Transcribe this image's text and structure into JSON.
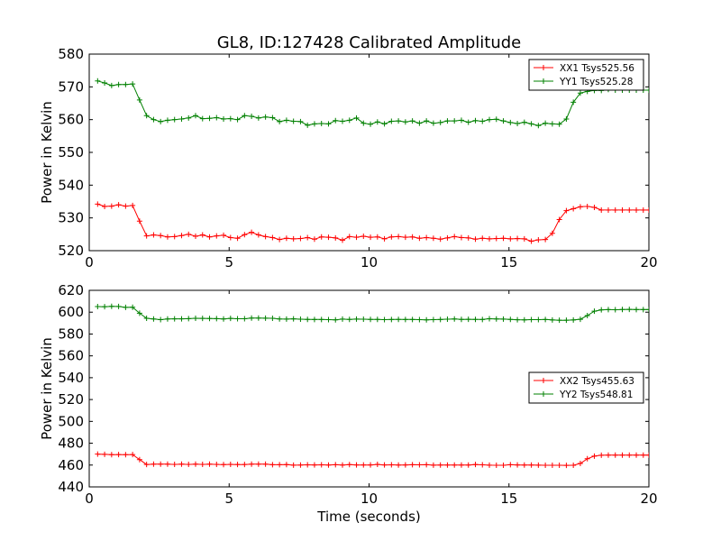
{
  "chart_data": [
    {
      "type": "line",
      "title": "GL8, ID:127428 Calibrated Amplitude",
      "xlabel": "",
      "ylabel": "Power in Kelvin",
      "xlim": [
        0,
        20
      ],
      "ylim": [
        520,
        580
      ],
      "xticks": [
        0,
        5,
        10,
        15,
        20
      ],
      "yticks": [
        520,
        530,
        540,
        550,
        560,
        570,
        580
      ],
      "grid": false,
      "legend": "top-right",
      "x": [
        0.3,
        0.55,
        0.8,
        1.05,
        1.3,
        1.55,
        1.8,
        2.05,
        2.3,
        2.55,
        2.8,
        3.05,
        3.3,
        3.55,
        3.8,
        4.05,
        4.3,
        4.55,
        4.8,
        5.05,
        5.3,
        5.55,
        5.8,
        6.05,
        6.3,
        6.55,
        6.8,
        7.05,
        7.3,
        7.55,
        7.8,
        8.05,
        8.3,
        8.55,
        8.8,
        9.05,
        9.3,
        9.55,
        9.8,
        10.05,
        10.3,
        10.55,
        10.8,
        11.05,
        11.3,
        11.55,
        11.8,
        12.05,
        12.3,
        12.55,
        12.8,
        13.05,
        13.3,
        13.55,
        13.8,
        14.05,
        14.3,
        14.55,
        14.8,
        15.05,
        15.3,
        15.55,
        15.8,
        16.05,
        16.3,
        16.55,
        16.8,
        17.05,
        17.3,
        17.55,
        17.8,
        18.05,
        18.3,
        18.55,
        18.8,
        19.05,
        19.3,
        19.55,
        19.8,
        20.0
      ],
      "series": [
        {
          "name": "XX1 Tsys525.56",
          "color": "#ff0000",
          "values": [
            534.2,
            533.5,
            533.6,
            534.0,
            533.6,
            533.8,
            529.0,
            524.5,
            524.8,
            524.6,
            524.2,
            524.3,
            524.6,
            525.0,
            524.4,
            524.8,
            524.2,
            524.5,
            524.7,
            524.0,
            523.8,
            524.9,
            525.6,
            524.8,
            524.3,
            524.0,
            523.4,
            523.8,
            523.6,
            523.7,
            524.0,
            523.5,
            524.2,
            524.1,
            523.9,
            523.2,
            524.3,
            524.1,
            524.4,
            524.1,
            524.2,
            523.6,
            524.2,
            524.3,
            524.1,
            524.2,
            523.8,
            524.0,
            523.8,
            523.5,
            523.9,
            524.3,
            524.0,
            523.9,
            523.5,
            523.8,
            523.6,
            523.7,
            523.8,
            523.6,
            523.7,
            523.6,
            522.9,
            523.3,
            523.4,
            525.3,
            529.5,
            532.2,
            532.8,
            533.4,
            533.5,
            533.2,
            532.4,
            532.4,
            532.4,
            532.4,
            532.4,
            532.4,
            532.4,
            532.4
          ]
        },
        {
          "name": "YY1 Tsys525.28",
          "color": "#008000",
          "values": [
            571.8,
            571.2,
            570.4,
            570.7,
            570.7,
            570.9,
            566.0,
            561.2,
            560.0,
            559.4,
            559.8,
            560.0,
            560.2,
            560.5,
            561.2,
            560.3,
            560.4,
            560.6,
            560.2,
            560.3,
            560.0,
            561.2,
            561.0,
            560.5,
            560.8,
            560.6,
            559.4,
            559.8,
            559.5,
            559.4,
            558.3,
            558.7,
            558.8,
            558.7,
            559.7,
            559.5,
            559.8,
            560.5,
            558.9,
            558.6,
            559.3,
            558.7,
            559.5,
            559.6,
            559.3,
            559.6,
            558.9,
            559.6,
            558.9,
            559.1,
            559.6,
            559.6,
            559.8,
            559.2,
            559.7,
            559.5,
            560.0,
            560.1,
            559.6,
            559.1,
            558.8,
            559.2,
            558.7,
            558.2,
            558.9,
            558.7,
            558.6,
            560.2,
            565.3,
            568.1,
            568.6,
            568.9,
            568.9,
            569.2,
            569.0,
            569.0,
            569.0,
            569.0,
            569.0,
            569.0
          ]
        }
      ]
    },
    {
      "type": "line",
      "title": "",
      "xlabel": "Time (seconds)",
      "ylabel": "Power in Kelvin",
      "xlim": [
        0,
        20
      ],
      "ylim": [
        440,
        620
      ],
      "xticks": [
        0,
        5,
        10,
        15,
        20
      ],
      "yticks": [
        440,
        460,
        480,
        500,
        520,
        540,
        560,
        580,
        600,
        620
      ],
      "grid": false,
      "legend": "center-right",
      "x": [
        0.3,
        0.55,
        0.8,
        1.05,
        1.3,
        1.55,
        1.8,
        2.05,
        2.3,
        2.55,
        2.8,
        3.05,
        3.3,
        3.55,
        3.8,
        4.05,
        4.3,
        4.55,
        4.8,
        5.05,
        5.3,
        5.55,
        5.8,
        6.05,
        6.3,
        6.55,
        6.8,
        7.05,
        7.3,
        7.55,
        7.8,
        8.05,
        8.3,
        8.55,
        8.8,
        9.05,
        9.3,
        9.55,
        9.8,
        10.05,
        10.3,
        10.55,
        10.8,
        11.05,
        11.3,
        11.55,
        11.8,
        12.05,
        12.3,
        12.55,
        12.8,
        13.05,
        13.3,
        13.55,
        13.8,
        14.05,
        14.3,
        14.55,
        14.8,
        15.05,
        15.3,
        15.55,
        15.8,
        16.05,
        16.3,
        16.55,
        16.8,
        17.05,
        17.3,
        17.55,
        17.8,
        18.05,
        18.3,
        18.55,
        18.8,
        19.05,
        19.3,
        19.55,
        19.8,
        20.0
      ],
      "series": [
        {
          "name": "XX2 Tsys455.63",
          "color": "#ff0000",
          "values": [
            470.0,
            469.8,
            469.5,
            469.6,
            469.5,
            469.6,
            465.0,
            460.5,
            460.9,
            460.8,
            460.8,
            460.6,
            460.8,
            460.6,
            460.8,
            460.6,
            460.9,
            460.6,
            460.4,
            460.6,
            460.5,
            460.5,
            460.8,
            460.9,
            460.8,
            460.3,
            460.3,
            460.4,
            459.9,
            460.0,
            460.2,
            460.1,
            460.2,
            460.0,
            460.3,
            460.0,
            460.4,
            460.1,
            460.1,
            460.1,
            460.6,
            460.1,
            460.2,
            460.0,
            460.1,
            460.3,
            460.2,
            460.3,
            459.9,
            460.0,
            460.0,
            460.0,
            460.0,
            460.0,
            460.5,
            460.2,
            459.9,
            459.8,
            459.8,
            460.3,
            460.1,
            460.0,
            460.0,
            459.9,
            459.8,
            459.8,
            459.8,
            459.7,
            459.8,
            461.5,
            465.8,
            468.2,
            469.0,
            469.1,
            469.1,
            469.1,
            469.1,
            469.1,
            469.1,
            469.1
          ]
        },
        {
          "name": "YY2 Tsys548.81",
          "color": "#008000",
          "values": [
            605.1,
            605.0,
            605.3,
            605.2,
            604.4,
            604.5,
            599.0,
            594.4,
            593.8,
            593.2,
            593.8,
            593.9,
            593.9,
            594.1,
            594.4,
            594.3,
            594.2,
            594.1,
            593.8,
            594.3,
            594.0,
            594.0,
            594.6,
            594.6,
            594.5,
            594.4,
            593.8,
            593.7,
            593.9,
            593.6,
            593.4,
            593.3,
            593.3,
            593.2,
            593.0,
            593.7,
            593.4,
            593.7,
            593.6,
            593.4,
            593.4,
            593.2,
            593.3,
            593.4,
            593.3,
            593.3,
            593.2,
            593.0,
            593.2,
            593.3,
            593.6,
            593.8,
            593.4,
            593.5,
            593.4,
            593.3,
            594.0,
            593.8,
            593.7,
            593.4,
            593.1,
            593.0,
            593.2,
            593.2,
            593.3,
            592.9,
            592.6,
            592.6,
            592.9,
            593.5,
            596.9,
            600.9,
            602.1,
            602.4,
            602.2,
            602.5,
            602.6,
            602.4,
            602.4,
            602.4
          ]
        }
      ]
    }
  ]
}
